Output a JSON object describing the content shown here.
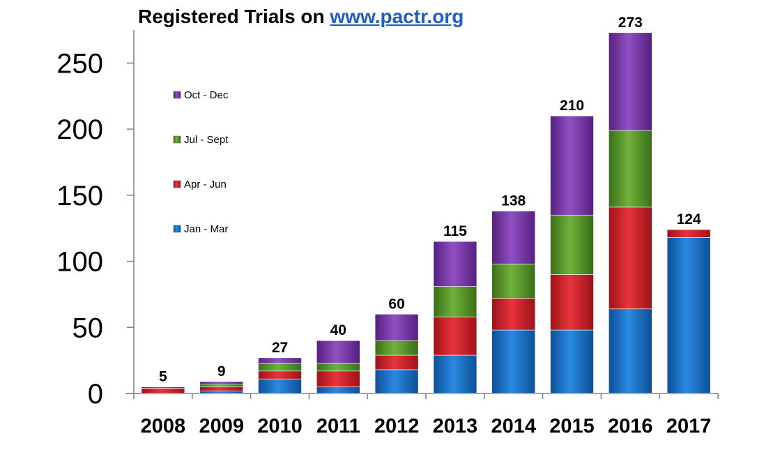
{
  "title": {
    "text": "Registered Trials on ",
    "link": "www.pactr.org"
  },
  "colors": {
    "Jan - Mar": "#1e73c8",
    "Apr - Jun": "#d3232e",
    "Jul - Sept": "#5a9a2e",
    "Oct - Dec": "#7b3aa8"
  },
  "chart_data": {
    "type": "bar",
    "stacked": true,
    "categories": [
      "2008",
      "2009",
      "2010",
      "2011",
      "2012",
      "2013",
      "2014",
      "2015",
      "2016",
      "2017"
    ],
    "series": [
      {
        "name": "Jan - Mar",
        "values": [
          0,
          2,
          11,
          5,
          18,
          29,
          48,
          48,
          64,
          118
        ]
      },
      {
        "name": "Apr - Jun",
        "values": [
          4,
          3,
          6,
          12,
          11,
          29,
          24,
          42,
          77,
          6
        ]
      },
      {
        "name": "Jul - Sept",
        "values": [
          0,
          2,
          6,
          6,
          11,
          23,
          26,
          45,
          58,
          0
        ]
      },
      {
        "name": "Oct - Dec",
        "values": [
          1,
          2,
          4,
          17,
          20,
          34,
          40,
          75,
          74,
          0
        ]
      }
    ],
    "totals": [
      "5",
      "9",
      "27",
      "40",
      "60",
      "115",
      "138",
      "210",
      "273",
      "124"
    ],
    "ylim": [
      0,
      275
    ],
    "yticks": [
      "0",
      "50",
      "100",
      "150",
      "200",
      "250"
    ],
    "legend": {
      "placement": "upper-left",
      "entries": [
        "Oct - Dec",
        "Jul - Sept",
        "Apr - Jun",
        "Jan - Mar"
      ]
    },
    "grid": false
  }
}
